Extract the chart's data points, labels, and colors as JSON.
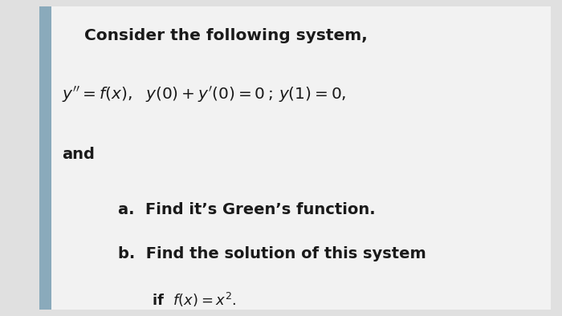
{
  "bg_color": "#e0e0e0",
  "card_color": "#f2f2f2",
  "border_left_color": "#8aaabb",
  "text_color": "#1a1a1a",
  "title": "Consider the following system,",
  "line2": "and",
  "item_a": "a.  Find it’s Green’s function.",
  "item_b": "b.  Find the solution of this system",
  "title_fontsize": 14.5,
  "body_fontsize": 14,
  "math_fontsize": 14.5,
  "small_fontsize": 13,
  "figwidth": 7.0,
  "figheight": 3.94,
  "dpi": 100
}
